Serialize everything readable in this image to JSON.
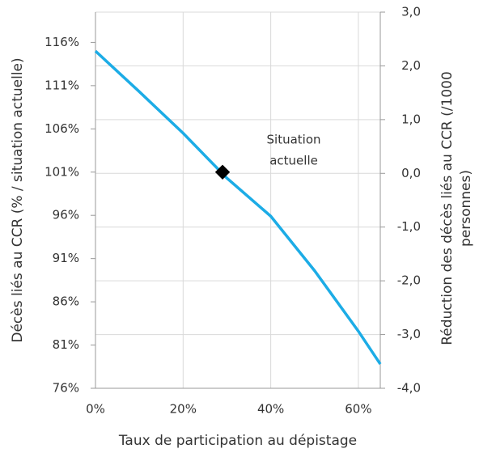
{
  "chart_data": {
    "type": "line",
    "x_label": "Taux de participation au dépistage",
    "y_label": "Décès liés au CCR (% / situation actuelle)",
    "y2_label": [
      "Réduction des décès liés au CCR (/1000",
      "personnes)"
    ],
    "x": [
      0,
      10,
      20,
      30,
      40,
      50,
      60,
      65
    ],
    "series": [
      {
        "color": "#1cace6",
        "values": [
          115.0,
          110.3,
          105.5,
          100.3,
          95.9,
          89.6,
          82.6,
          78.8
        ]
      }
    ],
    "marker": {
      "x": 29,
      "y": 101,
      "color": "#000000",
      "label": [
        "Situation",
        "actuelle"
      ]
    },
    "xlim": [
      0,
      65
    ],
    "xticks": [
      {
        "value": 0,
        "label": "0%"
      },
      {
        "value": 20,
        "label": "20%"
      },
      {
        "value": 40,
        "label": "40%"
      },
      {
        "value": 60,
        "label": "60%"
      }
    ],
    "ylim": [
      76,
      119.5
    ],
    "yticks": [
      {
        "value": 76,
        "label": "76%"
      },
      {
        "value": 81,
        "label": "81%"
      },
      {
        "value": 86,
        "label": "86%"
      },
      {
        "value": 91,
        "label": "91%"
      },
      {
        "value": 96,
        "label": "96%"
      },
      {
        "value": 101,
        "label": "101%"
      },
      {
        "value": 106,
        "label": "106%"
      },
      {
        "value": 111,
        "label": "111%"
      },
      {
        "value": 116,
        "label": "116%"
      }
    ],
    "y2lim": [
      -4,
      3
    ],
    "y2ticks": [
      {
        "value": -4,
        "label": "-4,0"
      },
      {
        "value": -3,
        "label": "-3,0"
      },
      {
        "value": -2,
        "label": "-2,0"
      },
      {
        "value": -1,
        "label": "-1,0"
      },
      {
        "value": 0,
        "label": "0,0"
      },
      {
        "value": 1,
        "label": "1,0"
      },
      {
        "value": 2,
        "label": "2,0"
      },
      {
        "value": 3,
        "label": "3,0"
      }
    ],
    "grid": true
  }
}
